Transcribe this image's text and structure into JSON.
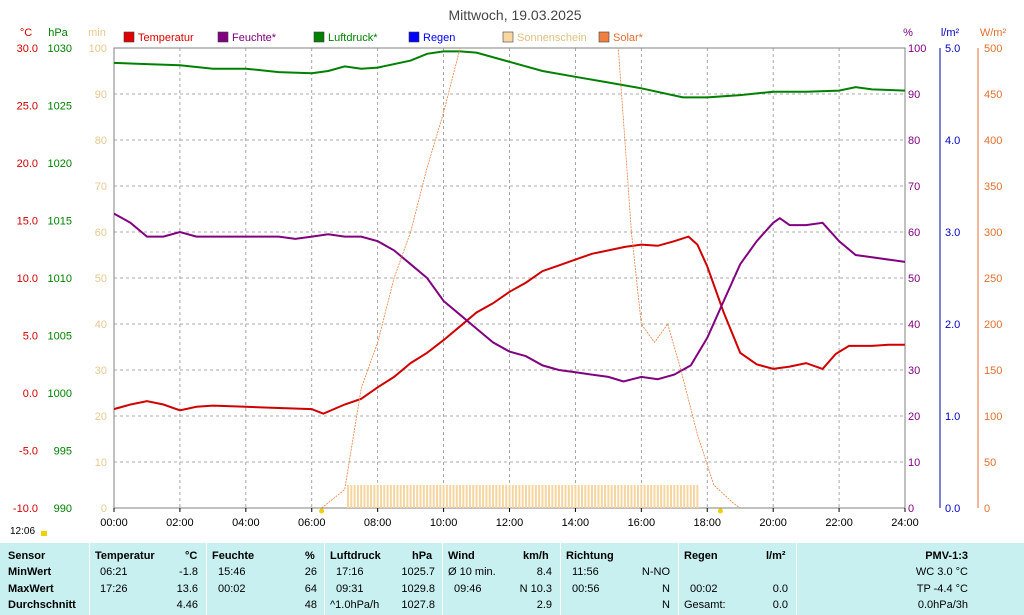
{
  "chart_data": {
    "type": "line",
    "title": "Mittwoch, 19.03.2025",
    "x_ticks": [
      "00:00",
      "02:00",
      "04:00",
      "06:00",
      "08:00",
      "10:00",
      "12:00",
      "14:00",
      "16:00",
      "18:00",
      "20:00",
      "22:00",
      "24:00"
    ],
    "axes": {
      "temp": {
        "unit": "°C",
        "ticks": [
          "30.0",
          "25.0",
          "20.0",
          "15.0",
          "10.0",
          "5.0",
          "0.0",
          "-5.0",
          "-10.0"
        ],
        "range": [
          -10,
          30
        ],
        "color": "#d00000"
      },
      "pressure": {
        "unit": "hPa",
        "ticks": [
          "1030",
          "1025",
          "1020",
          "1015",
          "1010",
          "1005",
          "1000",
          "995",
          "990"
        ],
        "range": [
          990,
          1030
        ],
        "color": "#008000"
      },
      "sunshine": {
        "unit": "min",
        "ticks": [
          "100",
          "90",
          "80",
          "70",
          "60",
          "50",
          "40",
          "30",
          "20",
          "10",
          "0"
        ],
        "range": [
          0,
          100
        ],
        "color": "#e8c890"
      },
      "humidity": {
        "unit": "%",
        "ticks": [
          "100",
          "90",
          "80",
          "70",
          "60",
          "50",
          "40",
          "30",
          "20",
          "10",
          "0"
        ],
        "range": [
          0,
          100
        ],
        "color": "#800080"
      },
      "rain": {
        "unit": "l/m²",
        "ticks": [
          "5.0",
          "4.0",
          "3.0",
          "2.0",
          "1.0",
          "0.0"
        ],
        "range": [
          0,
          5
        ],
        "color": "#0000c0"
      },
      "solar": {
        "unit": "W/m²",
        "ticks": [
          "500",
          "450",
          "400",
          "350",
          "300",
          "250",
          "200",
          "150",
          "100",
          "50",
          "0"
        ],
        "range": [
          0,
          500
        ],
        "color": "#e07030"
      }
    },
    "legend": [
      {
        "name": "Temperatur",
        "color": "#e00000"
      },
      {
        "name": "Feuchte*",
        "color": "#800080"
      },
      {
        "name": "Luftdruck*",
        "color": "#008000"
      },
      {
        "name": "Regen",
        "color": "#0000ff"
      },
      {
        "name": "Sonnenschein",
        "color": "#f8d8a0"
      },
      {
        "name": "Solar*",
        "color": "#f08040"
      }
    ],
    "series": [
      {
        "name": "Temperatur",
        "axis": "temp",
        "color": "#d00000",
        "points": [
          [
            0,
            -1.4
          ],
          [
            0.5,
            -1.0
          ],
          [
            1,
            -0.7
          ],
          [
            1.5,
            -1.0
          ],
          [
            2,
            -1.5
          ],
          [
            2.5,
            -1.2
          ],
          [
            3,
            -1.1
          ],
          [
            4,
            -1.2
          ],
          [
            5,
            -1.3
          ],
          [
            6,
            -1.4
          ],
          [
            6.35,
            -1.8
          ],
          [
            7,
            -1.0
          ],
          [
            7.5,
            -0.5
          ],
          [
            8,
            0.5
          ],
          [
            8.5,
            1.4
          ],
          [
            9,
            2.6
          ],
          [
            9.5,
            3.5
          ],
          [
            10,
            4.6
          ],
          [
            10.5,
            5.8
          ],
          [
            11,
            7.0
          ],
          [
            11.5,
            7.8
          ],
          [
            12,
            8.8
          ],
          [
            12.5,
            9.6
          ],
          [
            13,
            10.6
          ],
          [
            13.5,
            11.1
          ],
          [
            14,
            11.6
          ],
          [
            14.5,
            12.1
          ],
          [
            15,
            12.4
          ],
          [
            15.5,
            12.7
          ],
          [
            16,
            12.9
          ],
          [
            16.5,
            12.8
          ],
          [
            17,
            13.2
          ],
          [
            17.43,
            13.6
          ],
          [
            17.7,
            12.9
          ],
          [
            18,
            11.0
          ],
          [
            18.5,
            7.0
          ],
          [
            19,
            3.5
          ],
          [
            19.5,
            2.5
          ],
          [
            20,
            2.1
          ],
          [
            20.5,
            2.3
          ],
          [
            21,
            2.6
          ],
          [
            21.5,
            2.1
          ],
          [
            21.9,
            3.4
          ],
          [
            22.3,
            4.1
          ],
          [
            23,
            4.1
          ],
          [
            23.5,
            4.2
          ],
          [
            24,
            4.2
          ]
        ]
      },
      {
        "name": "Feuchte*",
        "axis": "humidity",
        "color": "#800080",
        "points": [
          [
            0,
            64
          ],
          [
            0.5,
            62
          ],
          [
            1,
            59
          ],
          [
            1.5,
            59
          ],
          [
            2,
            60
          ],
          [
            2.5,
            59
          ],
          [
            3,
            59
          ],
          [
            4,
            59
          ],
          [
            5,
            59
          ],
          [
            5.5,
            58.5
          ],
          [
            6,
            59
          ],
          [
            6.5,
            59.5
          ],
          [
            7,
            59
          ],
          [
            7.5,
            59
          ],
          [
            8,
            58
          ],
          [
            8.5,
            56
          ],
          [
            9,
            53
          ],
          [
            9.5,
            50
          ],
          [
            10,
            45
          ],
          [
            10.5,
            42
          ],
          [
            11,
            39
          ],
          [
            11.5,
            36
          ],
          [
            12,
            34
          ],
          [
            12.5,
            33
          ],
          [
            13,
            31
          ],
          [
            13.5,
            30
          ],
          [
            14,
            29.5
          ],
          [
            14.5,
            29
          ],
          [
            15,
            28.5
          ],
          [
            15.46,
            27.5
          ],
          [
            16,
            28.5
          ],
          [
            16.5,
            28
          ],
          [
            17,
            29
          ],
          [
            17.5,
            31
          ],
          [
            18,
            37
          ],
          [
            18.5,
            45
          ],
          [
            19,
            53
          ],
          [
            19.5,
            58
          ],
          [
            20,
            62
          ],
          [
            20.2,
            63
          ],
          [
            20.5,
            61.5
          ],
          [
            21,
            61.5
          ],
          [
            21.5,
            62
          ],
          [
            22,
            58
          ],
          [
            22.5,
            55
          ],
          [
            23,
            54.5
          ],
          [
            24,
            53.5
          ]
        ]
      },
      {
        "name": "Luftdruck*",
        "axis": "pressure",
        "color": "#008000",
        "points": [
          [
            0,
            1028.7
          ],
          [
            1,
            1028.6
          ],
          [
            2,
            1028.5
          ],
          [
            3,
            1028.2
          ],
          [
            4,
            1028.2
          ],
          [
            5,
            1027.9
          ],
          [
            6,
            1027.8
          ],
          [
            6.5,
            1028.0
          ],
          [
            7,
            1028.4
          ],
          [
            7.5,
            1028.2
          ],
          [
            8,
            1028.3
          ],
          [
            9,
            1028.9
          ],
          [
            9.5,
            1029.5
          ],
          [
            10,
            1029.7
          ],
          [
            10.5,
            1029.7
          ],
          [
            11,
            1029.6
          ],
          [
            12,
            1028.8
          ],
          [
            13,
            1028.0
          ],
          [
            14,
            1027.5
          ],
          [
            15,
            1027.0
          ],
          [
            16,
            1026.5
          ],
          [
            17.26,
            1025.7
          ],
          [
            18,
            1025.7
          ],
          [
            19,
            1025.9
          ],
          [
            20,
            1026.2
          ],
          [
            21,
            1026.2
          ],
          [
            22,
            1026.3
          ],
          [
            22.5,
            1026.6
          ],
          [
            23,
            1026.4
          ],
          [
            24,
            1026.3
          ]
        ]
      },
      {
        "name": "Solar*",
        "axis": "solar",
        "color": "#f08040",
        "points": [
          [
            6.3,
            0
          ],
          [
            7,
            20
          ],
          [
            7.5,
            130
          ],
          [
            8,
            180
          ],
          [
            8.5,
            250
          ],
          [
            9,
            300
          ],
          [
            9.5,
            370
          ],
          [
            10,
            430
          ],
          [
            10.5,
            500
          ],
          [
            11,
            520
          ],
          [
            15,
            520
          ],
          [
            15.3,
            500
          ],
          [
            15.7,
            300
          ],
          [
            16,
            200
          ],
          [
            16.4,
            180
          ],
          [
            16.8,
            200
          ],
          [
            17.2,
            150
          ],
          [
            17.7,
            80
          ],
          [
            18.2,
            25
          ],
          [
            18.8,
            5
          ],
          [
            19,
            0
          ]
        ]
      },
      {
        "name": "Sonnenschein",
        "axis": "sunshine",
        "color": "#f5d5a0",
        "bars": {
          "from": 7.1,
          "to": 17.7,
          "value": 5
        }
      }
    ]
  },
  "header": {
    "time_badge": "12:06"
  },
  "stats": {
    "sensor": {
      "label": "Sensor",
      "rows": [
        "MinWert",
        "MaxWert",
        "Durchschnitt"
      ]
    },
    "temperatur": {
      "label": "Temperatur",
      "unit": "°C",
      "times": [
        "06:21",
        "17:26",
        ""
      ],
      "values": [
        "-1.8",
        "13.6",
        "4.46"
      ]
    },
    "feuchte": {
      "label": "Feuchte",
      "unit": "%",
      "times": [
        "15:46",
        "00:02",
        ""
      ],
      "values": [
        "26",
        "64",
        "48"
      ]
    },
    "luftdruck": {
      "label": "Luftdruck",
      "unit": "hPa",
      "times": [
        "17:16",
        "09:31",
        "^1.0hPa/h"
      ],
      "values": [
        "1025.7",
        "1029.8",
        "1027.8"
      ]
    },
    "wind": {
      "label": "Wind",
      "unit": "km/h",
      "times": [
        "Ø 10 min.",
        "09:46",
        ""
      ],
      "values": [
        "8.4",
        "N 10.3",
        "2.9"
      ]
    },
    "richtung": {
      "label": "Richtung",
      "times": [
        "11:56",
        "00:56",
        ""
      ],
      "values": [
        "N-NO",
        "N",
        "N"
      ]
    },
    "regen": {
      "label": "Regen",
      "unit": "l/m²",
      "times": [
        "",
        "00:02",
        "Gesamt:"
      ],
      "values": [
        "",
        "0.0",
        "0.0"
      ]
    },
    "pmv": {
      "label": "PMV-1:3",
      "values": [
        "WC 3.0 °C",
        "TP -4.4 °C",
        "0.0hPa/3h"
      ]
    }
  }
}
